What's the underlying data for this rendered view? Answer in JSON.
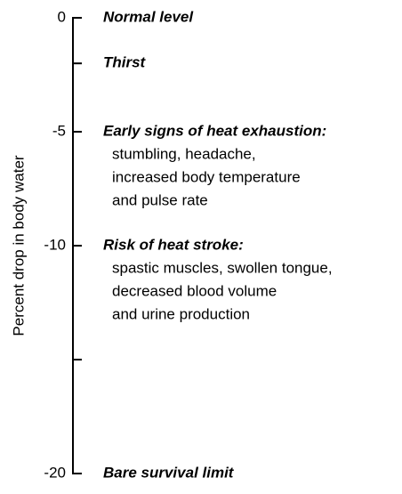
{
  "chart_data": {
    "type": "annotated-scale",
    "ylabel": "Percent drop in body water",
    "ylim": [
      -20,
      0
    ],
    "yticks": [
      0,
      -5,
      -10,
      -20
    ],
    "minor_yticks": [
      -2,
      -15
    ],
    "annotations": [
      {
        "value": 0,
        "heading": "Normal level"
      },
      {
        "value": -2,
        "heading": "Thirst"
      },
      {
        "value": -5,
        "heading": "Early signs of heat exhaustion:",
        "details": [
          "stumbling, headache,",
          "increased body temperature",
          "and pulse rate"
        ]
      },
      {
        "value": -10,
        "heading": "Risk of heat stroke:",
        "details": [
          "spastic muscles, swollen tongue,",
          "decreased blood volume",
          "and urine production"
        ]
      },
      {
        "value": -20,
        "heading": "Bare survival limit"
      }
    ]
  }
}
